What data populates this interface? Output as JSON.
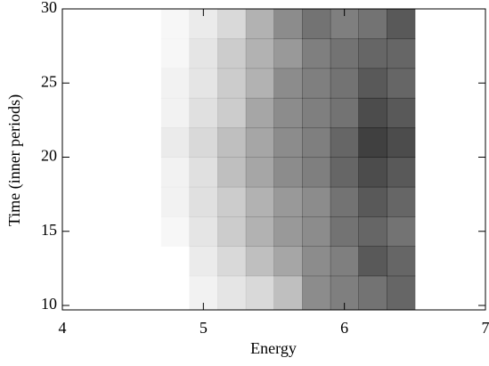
{
  "chart_data": {
    "type": "heatmap",
    "xlabel": "Energy",
    "ylabel": "Time (inner periods)",
    "xlim": [
      4,
      7
    ],
    "ylim": [
      9.7,
      30
    ],
    "xticks": [
      4,
      5,
      6,
      7
    ],
    "yticks": [
      10,
      15,
      20,
      25,
      30
    ],
    "color": "#000000",
    "x_edges": [
      4.7,
      4.9,
      5.1,
      5.3,
      5.5,
      5.7,
      5.9,
      6.1,
      6.3,
      6.5
    ],
    "y_edges": [
      9.7,
      12,
      14,
      16,
      18,
      20,
      22,
      24,
      26,
      28,
      30
    ],
    "z": [
      [
        0,
        0.05,
        0.1,
        0.15,
        0.25,
        0.45,
        0.5,
        0.55,
        0.6
      ],
      [
        0,
        0.08,
        0.15,
        0.25,
        0.35,
        0.45,
        0.5,
        0.65,
        0.6
      ],
      [
        0.03,
        0.1,
        0.2,
        0.3,
        0.4,
        0.45,
        0.55,
        0.6,
        0.55
      ],
      [
        0.05,
        0.12,
        0.2,
        0.3,
        0.4,
        0.45,
        0.55,
        0.65,
        0.6
      ],
      [
        0.05,
        0.12,
        0.25,
        0.35,
        0.45,
        0.5,
        0.6,
        0.7,
        0.65
      ],
      [
        0.08,
        0.15,
        0.25,
        0.35,
        0.45,
        0.5,
        0.6,
        0.75,
        0.7
      ],
      [
        0.05,
        0.12,
        0.2,
        0.35,
        0.45,
        0.5,
        0.55,
        0.7,
        0.65
      ],
      [
        0.05,
        0.1,
        0.2,
        0.3,
        0.45,
        0.5,
        0.55,
        0.65,
        0.6
      ],
      [
        0.03,
        0.1,
        0.2,
        0.3,
        0.4,
        0.5,
        0.55,
        0.6,
        0.6
      ],
      [
        0.03,
        0.08,
        0.15,
        0.3,
        0.45,
        0.55,
        0.5,
        0.55,
        0.65
      ]
    ]
  }
}
